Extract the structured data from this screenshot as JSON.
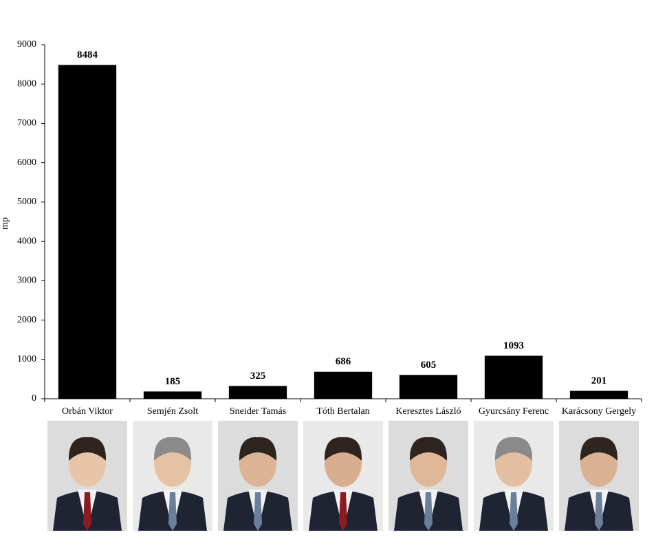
{
  "chart_data": {
    "type": "bar",
    "y_label": "mp",
    "categories": [
      "Orbán Viktor",
      "Semjén Zsolt",
      "Sneider Tamás",
      "Tóth Bertalan",
      "Keresztes László",
      "Gyurcsány Ferenc",
      "Karácsony Gergely"
    ],
    "values": [
      8484,
      185,
      325,
      686,
      605,
      1093,
      201
    ],
    "color": "#000000",
    "ylim": [
      0,
      9000
    ],
    "yticks": [
      0,
      1000,
      2000,
      3000,
      4000,
      5000,
      6000,
      7000,
      8000,
      9000
    ],
    "grid": false
  }
}
